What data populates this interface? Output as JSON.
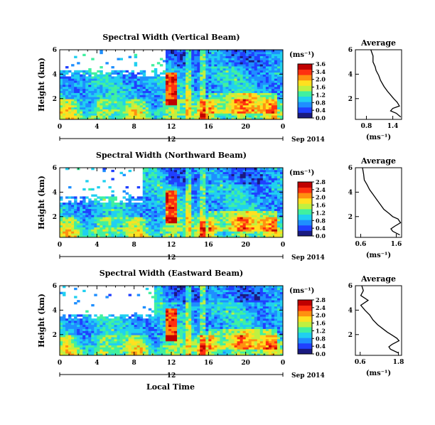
{
  "figure": {
    "shared_xlabel": "Local Time",
    "date_label": "Sep 2014",
    "day_marker": "12",
    "avg_title": "Average",
    "avg_xlabel": "(ms⁻¹)",
    "colorbar_unit": "(ms⁻¹)"
  },
  "chart_data": [
    {
      "type": "heatmap",
      "title": "Spectral Width (Vertical Beam)",
      "ylabel": "Height (km)",
      "xlabel": "",
      "x_ticks": [
        "0",
        "4",
        "8",
        "12",
        "16",
        "20",
        "0"
      ],
      "x_range": [
        0,
        24
      ],
      "y_ticks": [
        "6",
        "4",
        "2"
      ],
      "ylim": [
        0.3,
        6
      ],
      "colorbar_ticks": [
        "3.6",
        "3.4",
        "2.0",
        "1.6",
        "1.2",
        "0.8",
        "0.4",
        "0.0"
      ],
      "colorbar_range": [
        0,
        3.6
      ],
      "colorscale": [
        "#1a1a80",
        "#2040ff",
        "#1f8fff",
        "#20d0f0",
        "#40f0a0",
        "#c0f040",
        "#ffe020",
        "#ff9010",
        "#ff3010",
        "#c00000"
      ],
      "data_gap": {
        "until_hour": 11.5,
        "above_km": 4.3
      }
    },
    {
      "type": "heatmap",
      "title": "Spectral Width (Northward Beam)",
      "ylabel": "Height (km)",
      "xlabel": "",
      "x_ticks": [
        "0",
        "4",
        "8",
        "12",
        "16",
        "20",
        "0"
      ],
      "x_range": [
        0,
        24
      ],
      "y_ticks": [
        "6",
        "4",
        "2"
      ],
      "ylim": [
        0.3,
        6
      ],
      "colorbar_ticks": [
        "2.8",
        "2.4",
        "2.0",
        "1.6",
        "1.2",
        "0.8",
        "0.4",
        "0.0"
      ],
      "colorbar_range": [
        0,
        2.8
      ],
      "colorscale": [
        "#1a1a80",
        "#2040ff",
        "#1f8fff",
        "#20d0f0",
        "#40f0a0",
        "#c0f040",
        "#ffe020",
        "#ff9010",
        "#ff3010",
        "#c00000"
      ],
      "data_gap": {
        "until_hour": 9,
        "above_km": 3.6
      }
    },
    {
      "type": "heatmap",
      "title": "Spectral Width (Eastward Beam)",
      "ylabel": "Height (km)",
      "xlabel": "",
      "x_ticks": [
        "0",
        "4",
        "8",
        "12",
        "16",
        "20",
        "0"
      ],
      "x_range": [
        0,
        24
      ],
      "y_ticks": [
        "6",
        "4",
        "2"
      ],
      "ylim": [
        0.3,
        6
      ],
      "colorbar_ticks": [
        "2.8",
        "2.4",
        "2.0",
        "1.6",
        "1.2",
        "0.8",
        "0.4",
        "0.0"
      ],
      "colorbar_range": [
        0,
        2.8
      ],
      "colorscale": [
        "#1a1a80",
        "#2040ff",
        "#1f8fff",
        "#20d0f0",
        "#40f0a0",
        "#c0f040",
        "#ffe020",
        "#ff9010",
        "#ff3010",
        "#c00000"
      ],
      "data_gap": {
        "until_hour": 10.2,
        "above_km": 3.7
      }
    },
    {
      "type": "line",
      "title": "Average",
      "xlabel": "(ms⁻¹)",
      "x_ticks": [
        "0.8",
        "1.4"
      ],
      "xlim": [
        0.55,
        1.6
      ],
      "y_ticks": [
        "6",
        "4",
        "2"
      ],
      "ylim": [
        0.3,
        6
      ],
      "x": [
        0.9,
        0.95,
        0.95,
        1.0,
        1.02,
        1.08,
        1.12,
        1.2,
        1.28,
        1.35,
        1.42,
        1.5,
        1.55,
        1.4,
        1.35,
        1.48,
        1.58
      ],
      "y": [
        6.0,
        5.5,
        5.0,
        4.6,
        4.3,
        3.9,
        3.5,
        3.0,
        2.6,
        2.3,
        2.0,
        1.7,
        1.4,
        1.2,
        1.0,
        0.8,
        0.5
      ]
    },
    {
      "type": "line",
      "title": "Average",
      "xlabel": "(ms⁻¹)",
      "x_ticks": [
        "0.6",
        "1.6"
      ],
      "xlim": [
        0.45,
        1.75
      ],
      "y_ticks": [
        "6",
        "4",
        "2"
      ],
      "ylim": [
        0.3,
        6
      ],
      "x": [
        0.65,
        0.68,
        0.7,
        0.78,
        0.85,
        0.95,
        1.05,
        1.15,
        1.25,
        1.38,
        1.5,
        1.65,
        1.72,
        1.55,
        1.45,
        1.5,
        1.7
      ],
      "y": [
        6.0,
        5.5,
        5.0,
        4.6,
        4.2,
        3.8,
        3.4,
        3.0,
        2.6,
        2.3,
        2.0,
        1.8,
        1.5,
        1.2,
        1.0,
        0.8,
        0.5
      ]
    },
    {
      "type": "line",
      "title": "Average",
      "xlabel": "(ms⁻¹)",
      "x_ticks": [
        "0.6",
        "1.8"
      ],
      "xlim": [
        0.45,
        1.9
      ],
      "y_ticks": [
        "6",
        "4",
        "2"
      ],
      "ylim": [
        0.3,
        6
      ],
      "x": [
        0.65,
        0.7,
        0.62,
        0.85,
        0.62,
        0.75,
        0.9,
        1.0,
        1.15,
        1.3,
        1.45,
        1.6,
        1.75,
        1.82,
        1.6,
        1.5,
        1.55,
        1.8
      ],
      "y": [
        6.0,
        5.6,
        5.2,
        4.8,
        4.4,
        4.0,
        3.6,
        3.2,
        2.8,
        2.5,
        2.2,
        1.95,
        1.7,
        1.5,
        1.2,
        1.0,
        0.8,
        0.5
      ]
    }
  ]
}
